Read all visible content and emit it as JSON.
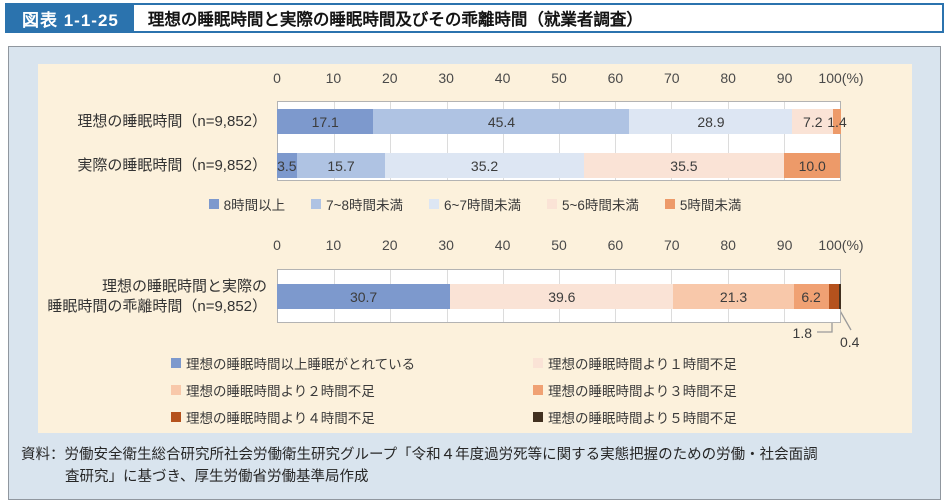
{
  "header": {
    "label": "図表 1-1-25",
    "title": "理想の睡眠時間と実際の睡眠時間及びその乖離時間（就業者調査）"
  },
  "chart_data": [
    {
      "type": "bar",
      "orientation": "horizontal",
      "stacked": true,
      "unit": "%",
      "axis": {
        "min": 0,
        "max": 100,
        "step": 10,
        "suffix": "(%)",
        "grid": true
      },
      "categories": [
        "理想の睡眠時間（n=9,852）",
        "実際の睡眠時間（n=9,852）"
      ],
      "series": [
        {
          "name": "8時間以上",
          "color": "#7d99cd",
          "values": [
            17.1,
            3.5
          ]
        },
        {
          "name": "7~8時間未満",
          "color": "#afc3e3",
          "values": [
            45.4,
            15.7
          ]
        },
        {
          "name": "6~7時間未満",
          "color": "#dde6f3",
          "values": [
            28.9,
            35.2
          ]
        },
        {
          "name": "5~6時間未満",
          "color": "#fae3d6",
          "values": [
            7.2,
            35.5
          ]
        },
        {
          "name": "5時間未満",
          "color": "#ed9a69",
          "values": [
            1.4,
            10.0
          ]
        }
      ],
      "legend_position": "bottom-center"
    },
    {
      "type": "bar",
      "orientation": "horizontal",
      "stacked": true,
      "unit": "%",
      "axis": {
        "min": 0,
        "max": 100,
        "step": 10,
        "suffix": "(%)",
        "grid": true
      },
      "categories": [
        "理想の睡眠時間と実際の\n睡眠時間の乖離時間（n=9,852）"
      ],
      "series": [
        {
          "name": "理想の睡眠時間以上睡眠がとれている",
          "color": "#7d99cd",
          "values": [
            30.7
          ]
        },
        {
          "name": "理想の睡眠時間より１時間不足",
          "color": "#fae3d6",
          "values": [
            39.6
          ]
        },
        {
          "name": "理想の睡眠時間より２時間不足",
          "color": "#f8c8aa",
          "values": [
            21.3
          ]
        },
        {
          "name": "理想の睡眠時間より３時間不足",
          "color": "#f0a173",
          "values": [
            6.2
          ]
        },
        {
          "name": "理想の睡眠時間より４時間不足",
          "color": "#b5521d",
          "values": [
            1.8
          ]
        },
        {
          "name": "理想の睡眠時間より５時間不足",
          "color": "#41301f",
          "values": [
            0.4
          ]
        }
      ],
      "legend_position": "bottom-two-columns"
    }
  ],
  "source": {
    "line1": "資料：労働安全衛生総合研究所社会労働衛生研究グループ「令和４年度過労死等に関する実態把握のための労働・社会面調",
    "line2": "査研究」に基づき、厚生労働省労働基準局作成"
  },
  "colors": {
    "header_blue": "#2b73ae",
    "content_background": "#d9e4ee",
    "panel_background": "#fcf1dc",
    "leader_line": "#9a9a9a"
  }
}
